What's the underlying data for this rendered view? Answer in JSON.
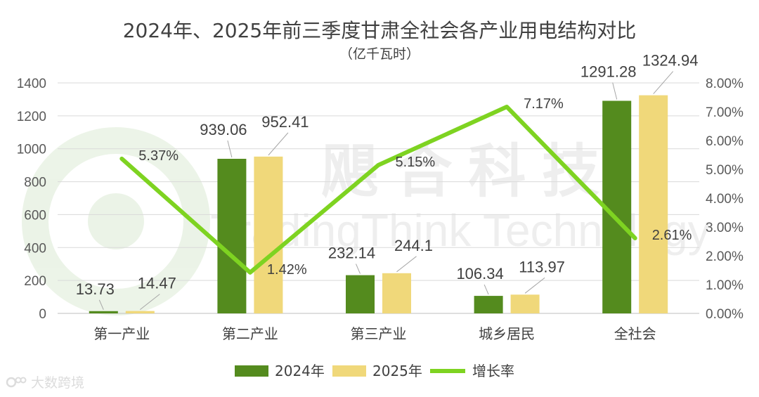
{
  "chart_data": {
    "type": "bar",
    "title": "2024年、2025年前三季度甘肃全社会各产业用电结构对比",
    "subtitle": "（亿千瓦时）",
    "categories": [
      "第一产业",
      "第二产业",
      "第三产业",
      "城乡居民",
      "全社会"
    ],
    "series": [
      {
        "name": "2024年",
        "type": "bar",
        "color": "#548b1e",
        "values": [
          13.73,
          939.06,
          232.14,
          106.34,
          1291.28
        ]
      },
      {
        "name": "2025年",
        "type": "bar",
        "color": "#f0d87a",
        "values": [
          14.47,
          952.41,
          244.1,
          113.97,
          1324.94
        ]
      },
      {
        "name": "增长率",
        "type": "line",
        "axis": "right",
        "color": "#7ed321",
        "values": [
          5.37,
          1.42,
          5.15,
          7.17,
          2.61
        ],
        "unit": "%"
      }
    ],
    "value_labels": {
      "2024年": [
        "13.73",
        "939.06",
        "232.14",
        "106.34",
        "1291.28"
      ],
      "2025年": [
        "14.47",
        "952.41",
        "244.1",
        "113.97",
        "1324.94"
      ],
      "增长率": [
        "5.37%",
        "1.42%",
        "5.15%",
        "7.17%",
        "2.61%"
      ]
    },
    "y_left": {
      "min": 0,
      "max": 1400,
      "step": 200,
      "ticks": [
        "0",
        "200",
        "400",
        "600",
        "800",
        "1000",
        "1200",
        "1400"
      ]
    },
    "y_right": {
      "min": 0,
      "max": 8,
      "step": 1,
      "ticks": [
        "0.00%",
        "1.00%",
        "2.00%",
        "3.00%",
        "4.00%",
        "5.00%",
        "6.00%",
        "7.00%",
        "8.00%"
      ]
    },
    "grid": true,
    "legend_position": "bottom"
  },
  "watermark": {
    "chinese": "飓 合 科 技",
    "english": "TradingThink Technology"
  },
  "brand": {
    "text": "大数跨境"
  }
}
